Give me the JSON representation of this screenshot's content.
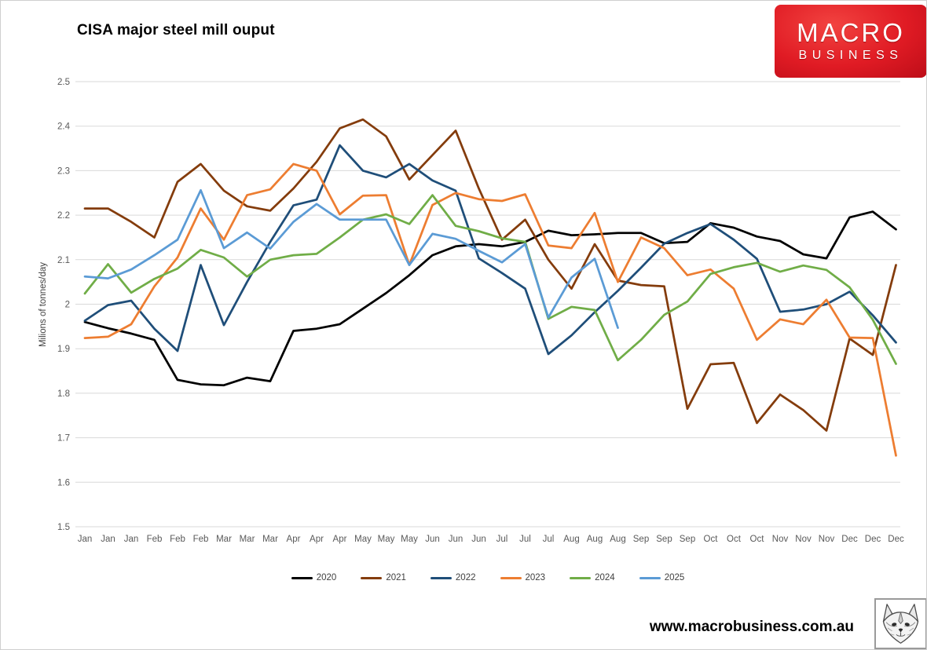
{
  "branding": {
    "logo_line1": "MACRO",
    "logo_line2": "BUSINESS",
    "logo_color": "#d91420",
    "website": "www.macrobusiness.com.au",
    "fox_icon": "fox-sketch-icon"
  },
  "chart_data": {
    "type": "line",
    "title": "CISA major steel mill ouput",
    "xlabel": "",
    "ylabel": "Milions of tonnes/day",
    "ylim": [
      1.5,
      2.5
    ],
    "grid": true,
    "legend_position": "bottom",
    "gridline_color": "#d9d9d9",
    "tick_label_color": "#595959",
    "axis_title_color": "#404040",
    "y_ticks": [
      "1.5",
      "1.6",
      "1.7",
      "1.8",
      "1.9",
      "2",
      "2.1",
      "2.2",
      "2.3",
      "2.4",
      "2.5"
    ],
    "categories": [
      "Jan",
      "Jan",
      "Jan",
      "Feb",
      "Feb",
      "Feb",
      "Mar",
      "Mar",
      "Mar",
      "Apr",
      "Apr",
      "Apr",
      "May",
      "May",
      "May",
      "Jun",
      "Jun",
      "Jun",
      "Jul",
      "Jul",
      "Jul",
      "Aug",
      "Aug",
      "Aug",
      "Sep",
      "Sep",
      "Sep",
      "Oct",
      "Oct",
      "Oct",
      "Nov",
      "Nov",
      "Nov",
      "Dec",
      "Dec",
      "Dec"
    ],
    "x_period": "10-day periods (3 per month)",
    "series": [
      {
        "name": "2020",
        "color": "#000000",
        "values": [
          1.96,
          1.946,
          1.934,
          1.92,
          1.83,
          1.82,
          1.818,
          1.835,
          1.827,
          1.94,
          1.945,
          1.955,
          1.99,
          2.025,
          2.065,
          2.11,
          2.13,
          2.135,
          2.13,
          2.14,
          2.165,
          2.155,
          2.157,
          2.16,
          2.16,
          2.137,
          2.14,
          2.182,
          2.172,
          2.152,
          2.142,
          2.112,
          2.103,
          2.195,
          2.208,
          2.168
        ]
      },
      {
        "name": "2021",
        "color": "#843c0c",
        "values": [
          2.215,
          2.215,
          2.185,
          2.15,
          2.275,
          2.315,
          2.255,
          2.22,
          2.21,
          2.26,
          2.32,
          2.395,
          2.415,
          2.377,
          2.28,
          2.335,
          2.39,
          2.26,
          2.145,
          2.19,
          2.1,
          2.035,
          2.135,
          2.053,
          2.043,
          2.04,
          1.765,
          1.865,
          1.868,
          1.733,
          1.797,
          1.762,
          1.716,
          1.923,
          1.886,
          2.088
        ]
      },
      {
        "name": "2022",
        "color": "#1f4e79",
        "values": [
          1.963,
          1.998,
          2.008,
          1.945,
          1.895,
          2.088,
          1.953,
          2.05,
          2.14,
          2.222,
          2.235,
          2.357,
          2.3,
          2.285,
          2.315,
          2.278,
          2.255,
          2.103,
          2.07,
          2.035,
          1.888,
          1.93,
          1.982,
          2.03,
          2.082,
          2.136,
          2.16,
          2.18,
          2.145,
          2.102,
          1.983,
          1.988,
          2.0,
          2.028,
          1.975,
          1.914
        ]
      },
      {
        "name": "2023",
        "color": "#ed7d31",
        "values": [
          1.924,
          1.927,
          1.955,
          2.04,
          2.105,
          2.215,
          2.145,
          2.245,
          2.258,
          2.315,
          2.3,
          2.202,
          2.244,
          2.245,
          2.088,
          2.223,
          2.25,
          2.236,
          2.232,
          2.247,
          2.132,
          2.126,
          2.205,
          2.05,
          2.15,
          2.126,
          2.065,
          2.078,
          2.035,
          1.92,
          1.966,
          1.955,
          2.01,
          1.925,
          1.924,
          1.66
        ]
      },
      {
        "name": "2024",
        "color": "#70ad47",
        "values": [
          2.024,
          2.09,
          2.026,
          2.057,
          2.08,
          2.122,
          2.105,
          2.062,
          2.1,
          2.11,
          2.113,
          2.15,
          2.19,
          2.202,
          2.18,
          2.245,
          2.176,
          2.164,
          2.148,
          2.14,
          1.967,
          1.994,
          1.987,
          1.874,
          1.92,
          1.976,
          2.006,
          2.068,
          2.083,
          2.093,
          2.073,
          2.087,
          2.077,
          2.038,
          1.965,
          1.866
        ]
      },
      {
        "name": "2025",
        "color": "#5b9bd5",
        "values": [
          2.062,
          2.058,
          2.078,
          2.11,
          2.145,
          2.256,
          2.126,
          2.161,
          2.125,
          2.185,
          2.225,
          2.19,
          2.19,
          2.19,
          2.088,
          2.158,
          2.147,
          2.12,
          2.094,
          2.135,
          1.97,
          2.06,
          2.102,
          1.947
        ]
      }
    ]
  }
}
